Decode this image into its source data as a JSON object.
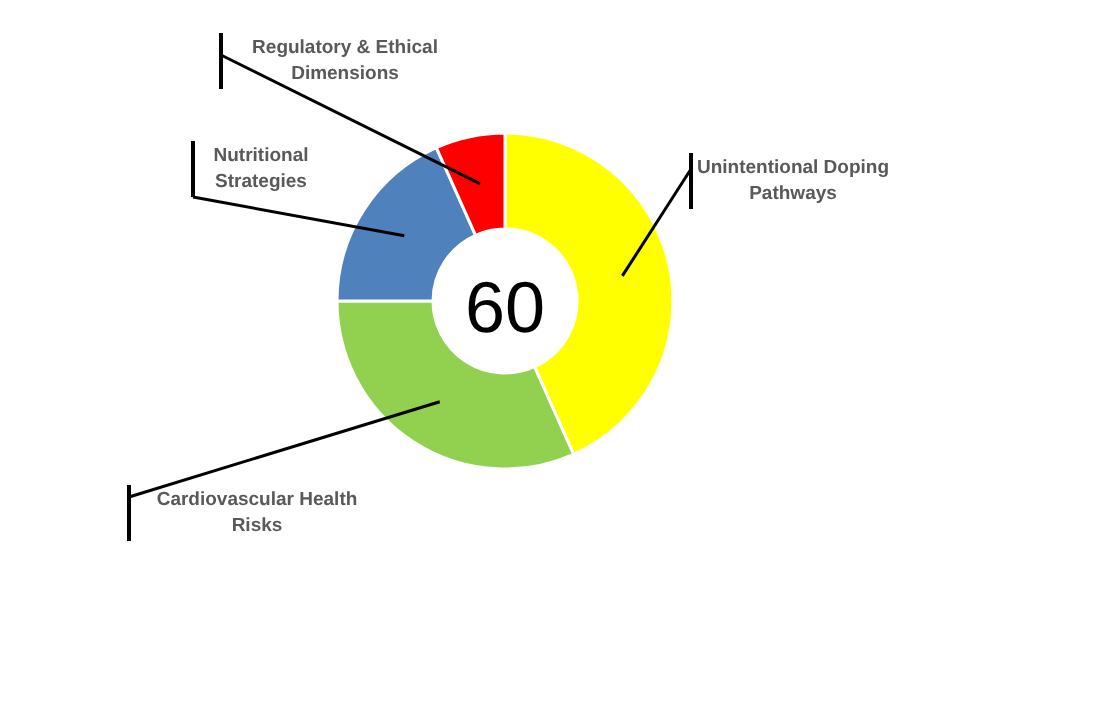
{
  "chart_data": {
    "type": "donut",
    "categories": [
      "Unintentional Doping Pathways",
      "Cardiovascular Health Risks",
      "Nutritional Strategies",
      "Regulatory & Ethical Dimensions"
    ],
    "values": [
      43.3,
      31.7,
      18.3,
      6.7
    ],
    "colors": [
      "#ffff00",
      "#92d050",
      "#4f81bd",
      "#ff0000"
    ],
    "annotations": [
      "60"
    ]
  }
}
